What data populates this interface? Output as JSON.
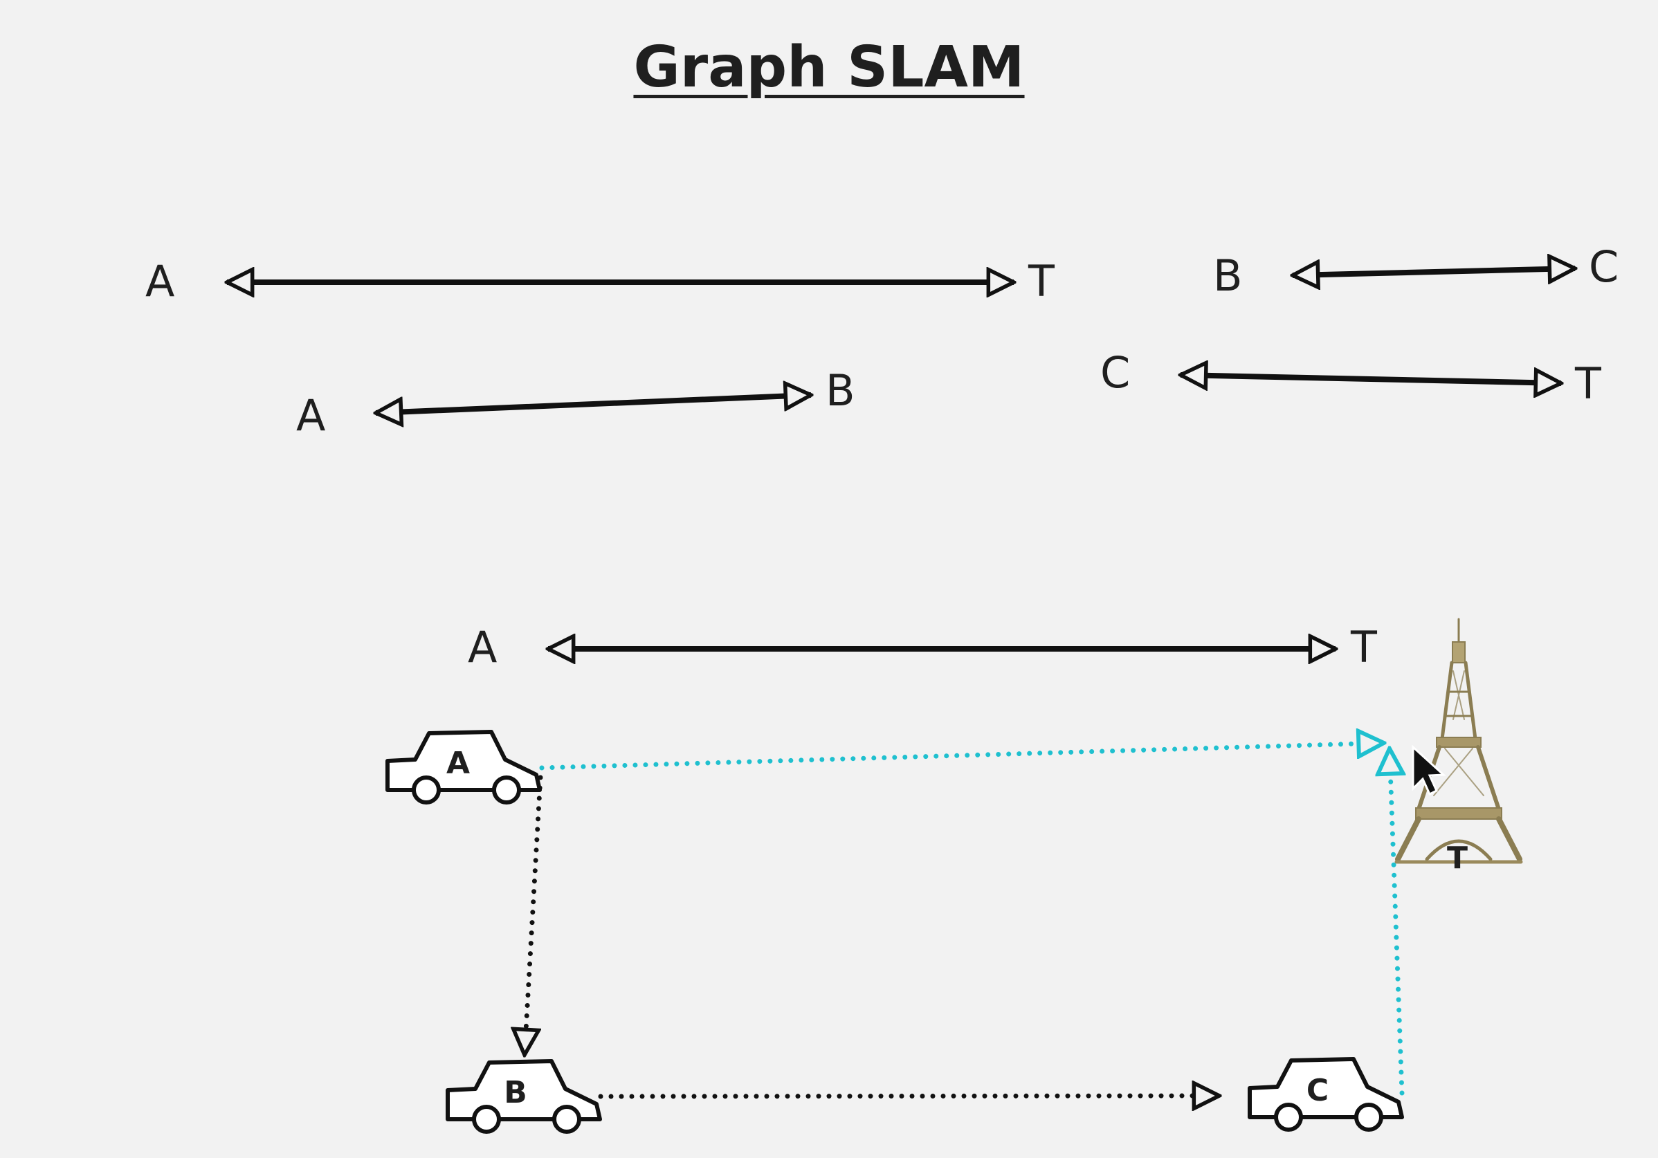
{
  "title": "Graph SLAM",
  "constraints": {
    "a_t": {
      "from": "A",
      "to": "T"
    },
    "a_b": {
      "from": "A",
      "to": "B"
    },
    "b_c": {
      "from": "B",
      "to": "C"
    },
    "c_t": {
      "from": "C",
      "to": "T"
    },
    "bottom_a_t": {
      "from": "A",
      "to": "T"
    }
  },
  "cars": {
    "a": "A",
    "b": "B",
    "c": "C"
  },
  "landmark": {
    "label": "T",
    "icon": "eiffel-tower-icon"
  },
  "colors": {
    "odometry": "#111111",
    "loop_closure": "#1fc0cf",
    "constraint": "#111111"
  },
  "cursor": {
    "icon": "mouse-pointer-icon"
  }
}
